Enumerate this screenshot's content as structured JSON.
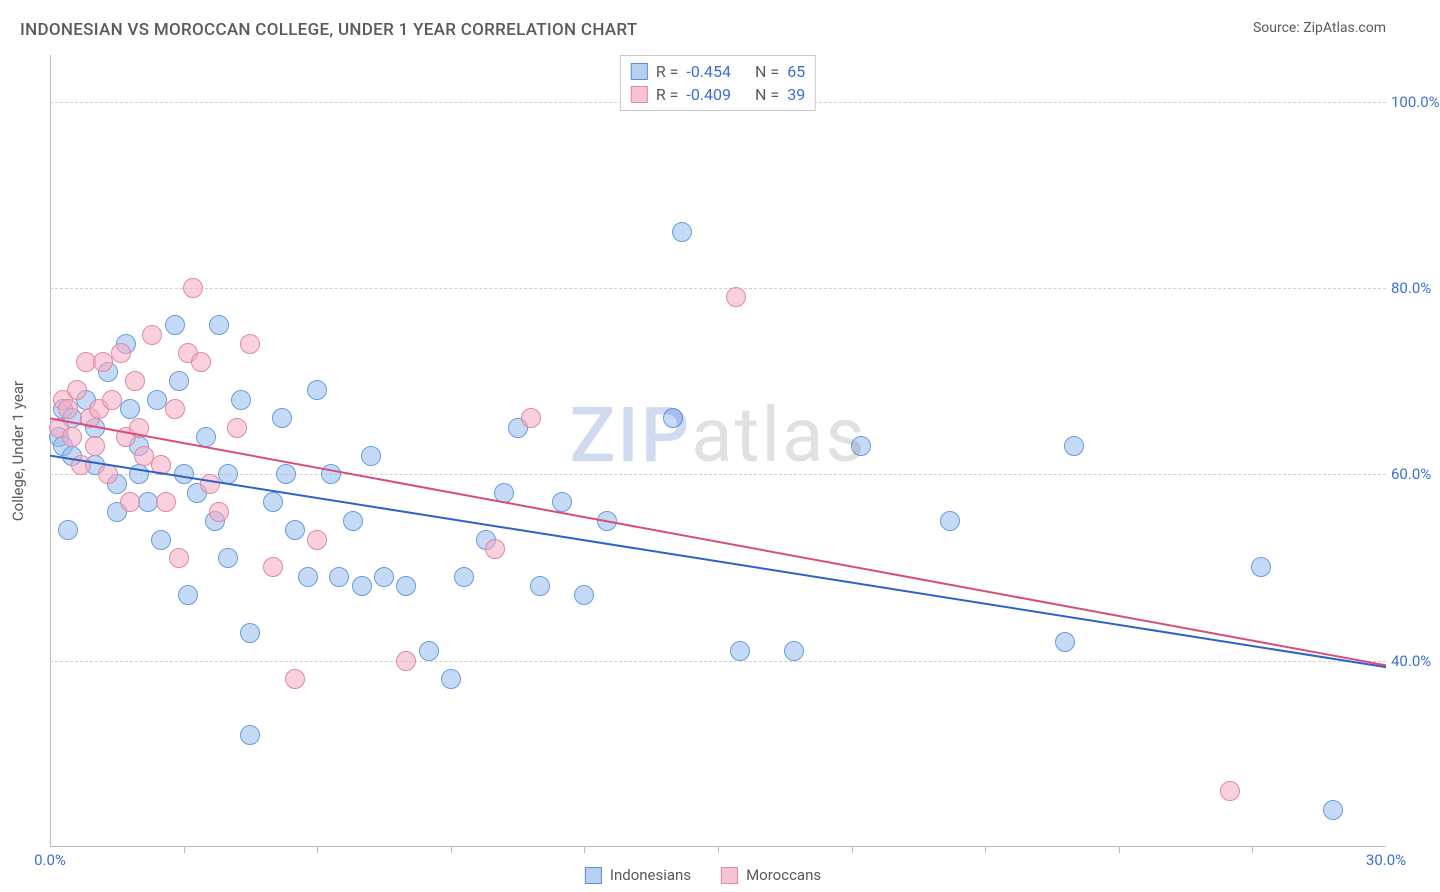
{
  "title": "INDONESIAN VS MOROCCAN COLLEGE, UNDER 1 YEAR CORRELATION CHART",
  "source": "Source: ZipAtlas.com",
  "watermark_a": "ZIP",
  "watermark_b": "atlas",
  "chart": {
    "type": "scatter",
    "background_color": "#ffffff",
    "grid_color": "#d0d0d0",
    "axis_color": "#bdbdbd",
    "ylabel": "College, Under 1 year",
    "ylabel_color": "#5a5a5a",
    "ytick_label_color": "#3b6fd6",
    "xtick_label_color": "#3b6fd6",
    "tick_fontsize": 15,
    "xlim": [
      0,
      30
    ],
    "ylim": [
      20,
      105
    ],
    "yticks": [
      {
        "v": 40,
        "label": "40.0%"
      },
      {
        "v": 60,
        "label": "60.0%"
      },
      {
        "v": 80,
        "label": "80.0%"
      },
      {
        "v": 100,
        "label": "100.0%"
      }
    ],
    "xticks_major": [
      {
        "v": 0,
        "label": "0.0%"
      },
      {
        "v": 30,
        "label": "30.0%"
      }
    ],
    "xticks_minor": [
      3,
      6,
      9,
      12,
      15,
      18,
      21,
      24,
      27
    ],
    "marker_radius": 10,
    "marker_stroke_width": 1.5,
    "corr_box": {
      "rows": [
        {
          "swatch_fill": "#b7d0f2",
          "swatch_stroke": "#5a8edb",
          "R_label": "R =",
          "R": "-0.454",
          "N_label": "N =",
          "N": "65"
        },
        {
          "swatch_fill": "#f6c3d2",
          "swatch_stroke": "#e18aa5",
          "R_label": "R =",
          "R": "-0.409",
          "N_label": "N =",
          "N": "39"
        }
      ]
    },
    "legend": [
      {
        "swatch_fill": "#b7d0f2",
        "swatch_stroke": "#5a8edb",
        "label": "Indonesians"
      },
      {
        "swatch_fill": "#f6c3d2",
        "swatch_stroke": "#e18aa5",
        "label": "Moroccans"
      }
    ],
    "series": [
      {
        "name": "Indonesians",
        "fill": "rgba(147,187,238,0.55)",
        "stroke": "#6a9ee0",
        "trend": {
          "color": "#2f62c8",
          "width": 2,
          "x0": 0,
          "y0": 62,
          "x1": 30,
          "y1": 39.3
        },
        "points": [
          [
            0.2,
            64
          ],
          [
            0.3,
            67
          ],
          [
            0.3,
            63
          ],
          [
            0.5,
            66
          ],
          [
            0.5,
            62
          ],
          [
            0.8,
            68
          ],
          [
            1.0,
            65
          ],
          [
            1.0,
            61
          ],
          [
            1.3,
            71
          ],
          [
            1.5,
            59
          ],
          [
            1.5,
            56
          ],
          [
            1.7,
            74
          ],
          [
            1.8,
            67
          ],
          [
            2.0,
            60
          ],
          [
            2.0,
            63
          ],
          [
            2.2,
            57
          ],
          [
            2.4,
            68
          ],
          [
            2.5,
            53
          ],
          [
            2.8,
            76
          ],
          [
            2.9,
            70
          ],
          [
            3.0,
            60
          ],
          [
            3.1,
            47
          ],
          [
            3.3,
            58
          ],
          [
            3.5,
            64
          ],
          [
            3.7,
            55
          ],
          [
            3.8,
            76
          ],
          [
            4.0,
            60
          ],
          [
            4.0,
            51
          ],
          [
            4.3,
            68
          ],
          [
            4.5,
            43
          ],
          [
            4.5,
            32
          ],
          [
            5.0,
            57
          ],
          [
            5.2,
            66
          ],
          [
            5.3,
            60
          ],
          [
            5.5,
            54
          ],
          [
            5.8,
            49
          ],
          [
            6.0,
            69
          ],
          [
            6.3,
            60
          ],
          [
            6.5,
            49
          ],
          [
            6.8,
            55
          ],
          [
            7.0,
            48
          ],
          [
            7.2,
            62
          ],
          [
            7.5,
            49
          ],
          [
            8.0,
            48
          ],
          [
            8.5,
            41
          ],
          [
            9.0,
            38
          ],
          [
            9.3,
            49
          ],
          [
            9.8,
            53
          ],
          [
            10.2,
            58
          ],
          [
            10.5,
            65
          ],
          [
            11.0,
            48
          ],
          [
            11.5,
            57
          ],
          [
            12.0,
            47
          ],
          [
            12.5,
            55
          ],
          [
            14.0,
            66
          ],
          [
            14.2,
            86
          ],
          [
            15.5,
            41
          ],
          [
            16.7,
            41
          ],
          [
            18.2,
            63
          ],
          [
            20.2,
            55
          ],
          [
            22.8,
            42
          ],
          [
            23.0,
            63
          ],
          [
            27.2,
            50
          ],
          [
            28.8,
            24
          ],
          [
            0.4,
            54
          ]
        ]
      },
      {
        "name": "Moroccans",
        "fill": "rgba(245,170,195,0.55)",
        "stroke": "#e18aa5",
        "trend": {
          "color": "#d74e7b",
          "width": 2,
          "x0": 0,
          "y0": 66,
          "x1": 30,
          "y1": 39.5
        },
        "points": [
          [
            0.2,
            65
          ],
          [
            0.3,
            68
          ],
          [
            0.4,
            67
          ],
          [
            0.5,
            64
          ],
          [
            0.6,
            69
          ],
          [
            0.7,
            61
          ],
          [
            0.8,
            72
          ],
          [
            0.9,
            66
          ],
          [
            1.0,
            63
          ],
          [
            1.1,
            67
          ],
          [
            1.2,
            72
          ],
          [
            1.3,
            60
          ],
          [
            1.4,
            68
          ],
          [
            1.6,
            73
          ],
          [
            1.7,
            64
          ],
          [
            1.8,
            57
          ],
          [
            1.9,
            70
          ],
          [
            2.0,
            65
          ],
          [
            2.1,
            62
          ],
          [
            2.3,
            75
          ],
          [
            2.5,
            61
          ],
          [
            2.6,
            57
          ],
          [
            2.8,
            67
          ],
          [
            2.9,
            51
          ],
          [
            3.1,
            73
          ],
          [
            3.2,
            80
          ],
          [
            3.4,
            72
          ],
          [
            3.6,
            59
          ],
          [
            3.8,
            56
          ],
          [
            4.2,
            65
          ],
          [
            4.5,
            74
          ],
          [
            5.0,
            50
          ],
          [
            5.5,
            38
          ],
          [
            6.0,
            53
          ],
          [
            8.0,
            40
          ],
          [
            10.0,
            52
          ],
          [
            10.8,
            66
          ],
          [
            15.4,
            79
          ],
          [
            26.5,
            26
          ]
        ]
      }
    ]
  }
}
